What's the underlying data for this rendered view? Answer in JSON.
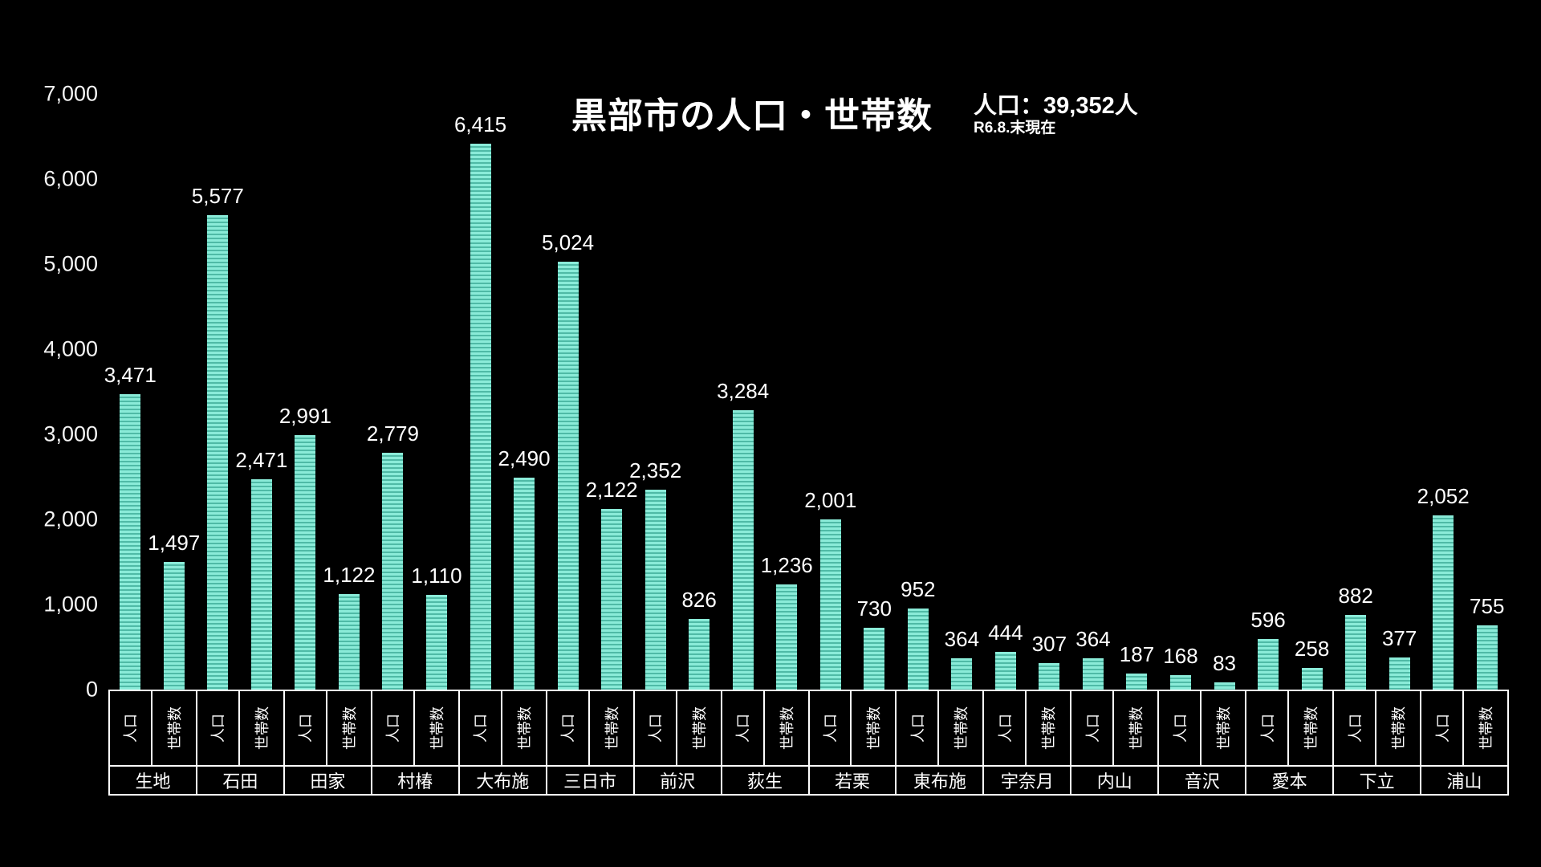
{
  "title": "黒部市の人口・世帯数",
  "annotation": {
    "line1": "人口：39,352人",
    "line2": "R6.8.末現在"
  },
  "chart_data": {
    "type": "bar",
    "title": "黒部市の人口・世帯数",
    "categories": [
      "生地",
      "石田",
      "田家",
      "村椿",
      "大布施",
      "三日市",
      "前沢",
      "荻生",
      "若栗",
      "東布施",
      "宇奈月",
      "内山",
      "音沢",
      "愛本",
      "下立",
      "浦山"
    ],
    "series": [
      {
        "name": "人口",
        "values": [
          3471,
          5577,
          2991,
          2779,
          6415,
          5024,
          2352,
          3284,
          2001,
          952,
          444,
          364,
          168,
          596,
          882,
          2052
        ]
      },
      {
        "name": "世帯数",
        "values": [
          1497,
          2471,
          1122,
          1110,
          2490,
          2122,
          826,
          1236,
          730,
          364,
          307,
          187,
          83,
          258,
          377,
          755
        ]
      }
    ],
    "ylim": [
      0,
      7000
    ],
    "ytick_step": 1000,
    "yticks": [
      "0",
      "1,000",
      "2,000",
      "3,000",
      "4,000",
      "5,000",
      "6,000",
      "7,000"
    ],
    "bar_color": "#6fd9c4",
    "background": "#000000",
    "grid": false,
    "legend_position": "none",
    "xlabel": "",
    "ylabel": ""
  }
}
